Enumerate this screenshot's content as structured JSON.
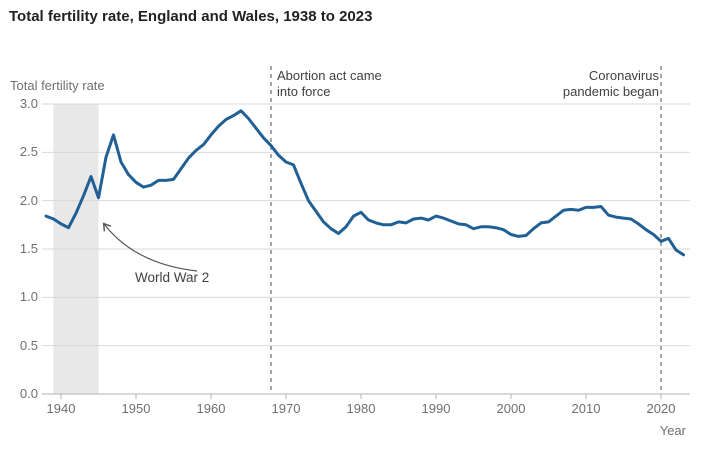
{
  "chart_data": {
    "type": "line",
    "title": "Total fertility rate, England and Wales, 1938 to 2023",
    "ylabel": "Total fertility rate",
    "xlabel": "Year",
    "xlim": [
      1938,
      2023
    ],
    "ylim": [
      0,
      3
    ],
    "yticks": [
      "0.0",
      "0.5",
      "1.0",
      "1.5",
      "2.0",
      "2.5",
      "3.0"
    ],
    "xticks": [
      1940,
      1950,
      1960,
      1970,
      1980,
      1990,
      2000,
      2010,
      2020
    ],
    "grid": "horizontal",
    "legend": "none",
    "series_name": "Total fertility rate",
    "x_start": 1938,
    "values": [
      1.84,
      1.81,
      1.76,
      1.72,
      1.87,
      2.05,
      2.25,
      2.03,
      2.45,
      2.68,
      2.4,
      2.27,
      2.19,
      2.14,
      2.16,
      2.21,
      2.21,
      2.22,
      2.33,
      2.44,
      2.52,
      2.58,
      2.68,
      2.77,
      2.84,
      2.88,
      2.93,
      2.85,
      2.75,
      2.65,
      2.57,
      2.47,
      2.4,
      2.37,
      2.18,
      2.0,
      1.89,
      1.78,
      1.71,
      1.66,
      1.73,
      1.84,
      1.88,
      1.8,
      1.77,
      1.75,
      1.75,
      1.78,
      1.77,
      1.81,
      1.82,
      1.8,
      1.84,
      1.82,
      1.79,
      1.76,
      1.75,
      1.71,
      1.73,
      1.73,
      1.72,
      1.7,
      1.65,
      1.63,
      1.64,
      1.71,
      1.77,
      1.78,
      1.84,
      1.9,
      1.91,
      1.9,
      1.93,
      1.93,
      1.94,
      1.85,
      1.83,
      1.82,
      1.81,
      1.76,
      1.7,
      1.65,
      1.58,
      1.61,
      1.49,
      1.44
    ],
    "shaded_region": {
      "from": 1939,
      "to": 1945,
      "label": "World War 2"
    },
    "vlines": [
      {
        "x": 1968,
        "label1": "Abortion act came",
        "label2": "into force"
      },
      {
        "x": 2020,
        "label1": "Coronavirus",
        "label2": "pandemic began"
      }
    ]
  },
  "colors": {
    "line": "#206095",
    "band": "#e8e8e8",
    "grid": "#d9d9d9",
    "axis": "#b3b3b3",
    "dashed": "#a6a6a6",
    "tick_text": "#707070",
    "annotation_text": "#414042",
    "title_text": "#222222",
    "arrow": "#595959"
  }
}
